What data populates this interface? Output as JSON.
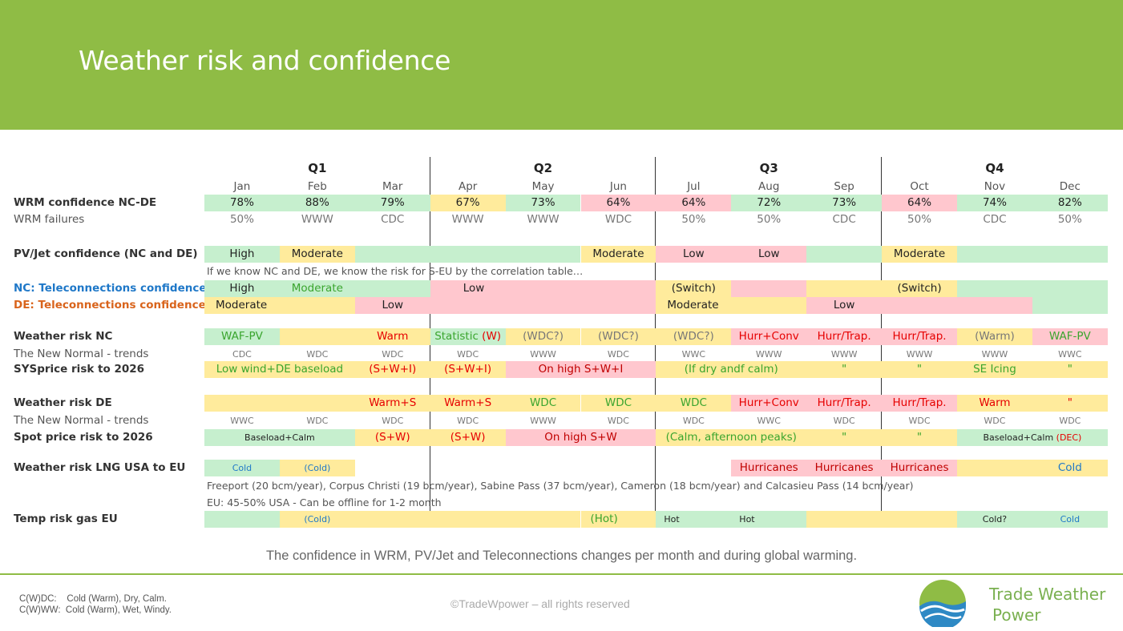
{
  "header": {
    "title": "Weather risk and confidence"
  },
  "quarters": [
    "Q1",
    "Q2",
    "Q3",
    "Q4"
  ],
  "months": [
    "Jan",
    "Feb",
    "Mar",
    "Apr",
    "May",
    "Jun",
    "Jul",
    "Aug",
    "Sep",
    "Oct",
    "Nov",
    "Dec"
  ],
  "colors": {
    "header_green": "#8fbc45",
    "cell_green": "#c6efce",
    "cell_yellow": "#ffeb9c",
    "cell_pink": "#ffc7ce"
  },
  "rows": {
    "wrm_conf": {
      "label": "WRM confidence NC-DE",
      "values": [
        "78%",
        "88%",
        "79%",
        "67%",
        "73%",
        "64%",
        "64%",
        "72%",
        "73%",
        "64%",
        "74%",
        "82%"
      ]
    },
    "wrm_fail": {
      "label": "WRM failures",
      "values": [
        "50%",
        "WWW",
        "CDC",
        "WWW",
        "WWW",
        "WDC",
        "50%",
        "50%",
        "CDC",
        "50%",
        "CDC",
        "50%"
      ]
    },
    "pvjet": {
      "label": "PV/Jet confidence (NC and DE)",
      "values": [
        "High",
        "Moderate",
        "Moderate",
        "Low",
        "Low",
        "Moderate"
      ]
    },
    "pvjet_note": "If we know NC and DE, we know the risk for S-EU by the correlation table…",
    "nc_tele": {
      "label": "NC: Teleconnections confidence",
      "values": [
        "High",
        "Moderate",
        "Low",
        "(Switch)",
        "(Switch)"
      ]
    },
    "de_tele": {
      "label": "DE: Teleconnections confidence",
      "values": [
        "Moderate",
        "Low",
        "Moderate",
        "Low"
      ]
    },
    "wr_nc": {
      "label": "Weather risk NC",
      "values": [
        "WAF-PV",
        "Warm",
        "Statistic ",
        "(W)",
        "(WDC?)",
        "(WDC?)",
        "(WDC?)",
        "Hurr+Conv",
        "Hurr/Trap.",
        "Hurr/Trap.",
        "(Warm)",
        "WAF-PV"
      ]
    },
    "nn_nc": {
      "label": "The New Normal - trends",
      "values": [
        "CDC",
        "WDC",
        "WDC",
        "WDC",
        "WWW",
        "WDC",
        "WWC",
        "WWW",
        "WWW",
        "WWW",
        "WWW",
        "WWC"
      ]
    },
    "sys": {
      "label": "SYSprice risk to 2026",
      "values": [
        "Low wind+DE baseload",
        "(S+W+I)",
        "(S+W+I)",
        "On high S+W+I",
        "(If dry andf calm)",
        "\"",
        "\"",
        "SE Icing",
        "\""
      ]
    },
    "wr_de": {
      "label": "Weather risk DE",
      "values": [
        "Warm+S",
        "Warm+S",
        "WDC",
        "WDC",
        "WDC",
        "Hurr+Conv",
        "Hurr/Trap.",
        "Hurr/Trap.",
        "Warm",
        "\""
      ]
    },
    "nn_de": {
      "label": "The New Normal - trends",
      "values": [
        "WWC",
        "WDC",
        "WDC",
        "WDC",
        "WWW",
        "WDC",
        "WDC",
        "WWC",
        "WDC",
        "WDC",
        "WDC",
        "WDC"
      ]
    },
    "spot": {
      "label": "Spot price risk to 2026",
      "values": [
        "Baseload+Calm",
        "(S+W)",
        "(S+W)",
        "On high S+W",
        "(Calm, afternoon peaks)",
        "\"",
        "\"",
        "Baseload+Calm ",
        "(DEC)"
      ]
    },
    "lng": {
      "label": "Weather risk LNG USA to EU",
      "values": [
        "Cold",
        "(Cold)",
        "Hurricanes",
        "Hurricanes",
        "Hurricanes",
        "Cold"
      ]
    },
    "lng_note1": "Freeport (20 bcm/year), Corpus Christi (19 bcm/year), Sabine Pass (37 bcm/year), Cameron (18 bcm/year) and Calcasieu Pass (14 bcm/year)",
    "lng_note2": "EU: 45-50% USA - Can be offline for 1-2 month",
    "temp": {
      "label": "Temp risk gas EU",
      "values": [
        "(Cold)",
        "(Hot)",
        "Hot",
        "Hot",
        "Cold?",
        "Cold"
      ]
    }
  },
  "caption": "The confidence in WRM, PV/Jet and Teleconnections changes per month and during global warming.",
  "footer": {
    "legend1": "C(W)DC:    Cold (Warm), Dry, Calm.",
    "legend2": "C(W)WW:  Cold (Warm), Wet, Windy.",
    "copyright": "©TradeWpower – all rights reserved",
    "brand_line1": "Trade Weather",
    "brand_line2": "Power"
  }
}
